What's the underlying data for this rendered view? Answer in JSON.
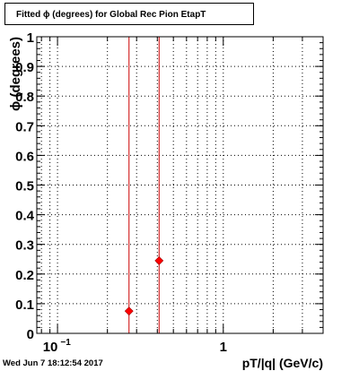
{
  "title": "Fitted ϕ (degrees) for Global Rec Pion EtapT",
  "timestamp": "Wed Jun  7 18:12:54 2017",
  "chart_data": {
    "type": "scatter",
    "title": "Fitted ϕ (degrees) for Global Rec Pion EtapT",
    "xlabel": "pT/|q| (GeV/c)",
    "ylabel": "ϕ (degrees)",
    "xscale": "log",
    "xlim": [
      0.075,
      4.0
    ],
    "ylim": [
      0,
      1
    ],
    "x_ticks_major": [
      {
        "value": 0.1,
        "label": "10",
        "exponent": "−1"
      },
      {
        "value": 1,
        "label": "1",
        "exponent": ""
      }
    ],
    "y_ticks": [
      {
        "value": 0,
        "label": "0"
      },
      {
        "value": 0.1,
        "label": "0.1"
      },
      {
        "value": 0.2,
        "label": "0.2"
      },
      {
        "value": 0.3,
        "label": "0.3"
      },
      {
        "value": 0.4,
        "label": "0.4"
      },
      {
        "value": 0.5,
        "label": "0.5"
      },
      {
        "value": 0.6,
        "label": "0.6"
      },
      {
        "value": 0.7,
        "label": "0.7"
      },
      {
        "value": 0.8,
        "label": "0.8"
      },
      {
        "value": 0.9,
        "label": "0.9"
      },
      {
        "value": 1,
        "label": "1"
      }
    ],
    "grid": true,
    "points": [
      {
        "x": 0.27,
        "y": 0.075
      },
      {
        "x": 0.41,
        "y": 0.245
      }
    ],
    "vertical_lines": [
      0.27,
      0.41
    ],
    "colors": {
      "marker": "#ff0000",
      "line": "#cc0000",
      "grid": "#000000"
    }
  }
}
